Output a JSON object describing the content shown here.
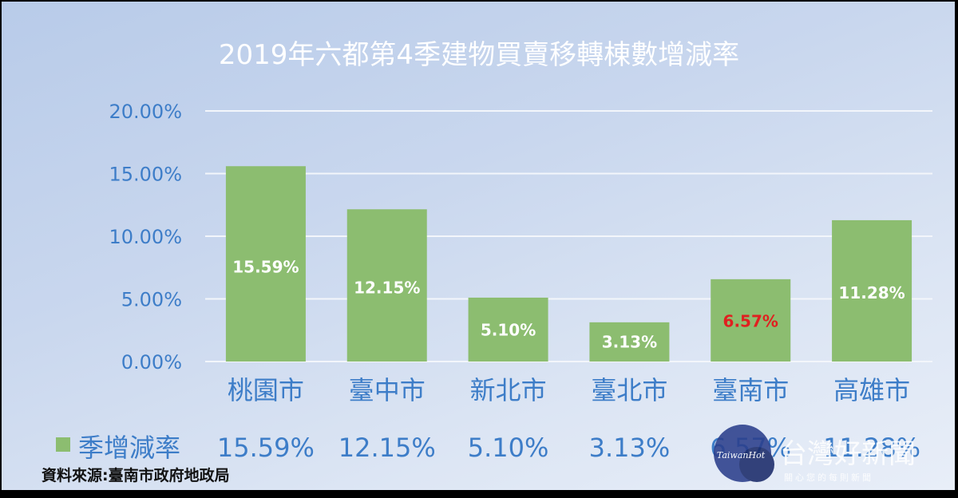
{
  "chart_data": {
    "type": "bar",
    "title": "2019年六都第4季建物買賣移轉棟數增減率",
    "categories": [
      "桃園市",
      "臺中市",
      "新北市",
      "臺北市",
      "臺南市",
      "高雄市"
    ],
    "series": [
      {
        "name": "季增減率",
        "values": [
          15.59,
          12.15,
          5.1,
          3.13,
          6.57,
          11.28
        ],
        "labels": [
          "15.59%",
          "12.15%",
          "5.10%",
          "3.13%",
          "6.57%",
          "11.28%"
        ]
      }
    ],
    "yticks": [
      "0.00%",
      "5.00%",
      "10.00%",
      "15.00%",
      "20.00%"
    ],
    "ylim": [
      0,
      20
    ],
    "ylabel": "",
    "xlabel": "",
    "grid": true,
    "legend": "data-table-bottom",
    "highlight_category": "臺南市"
  },
  "colors": {
    "bar": "#8cbd70",
    "label_default": "#ffffff",
    "label_highlight": "#e02020",
    "axis_text": "#3d7dc8",
    "title": "#ffffff"
  },
  "source_note": "資料來源:臺南市政府地政局",
  "watermark": {
    "logo_text": "TaiwanHot",
    "name": "台灣好新聞",
    "subtitle": "關心您的每則新聞"
  }
}
